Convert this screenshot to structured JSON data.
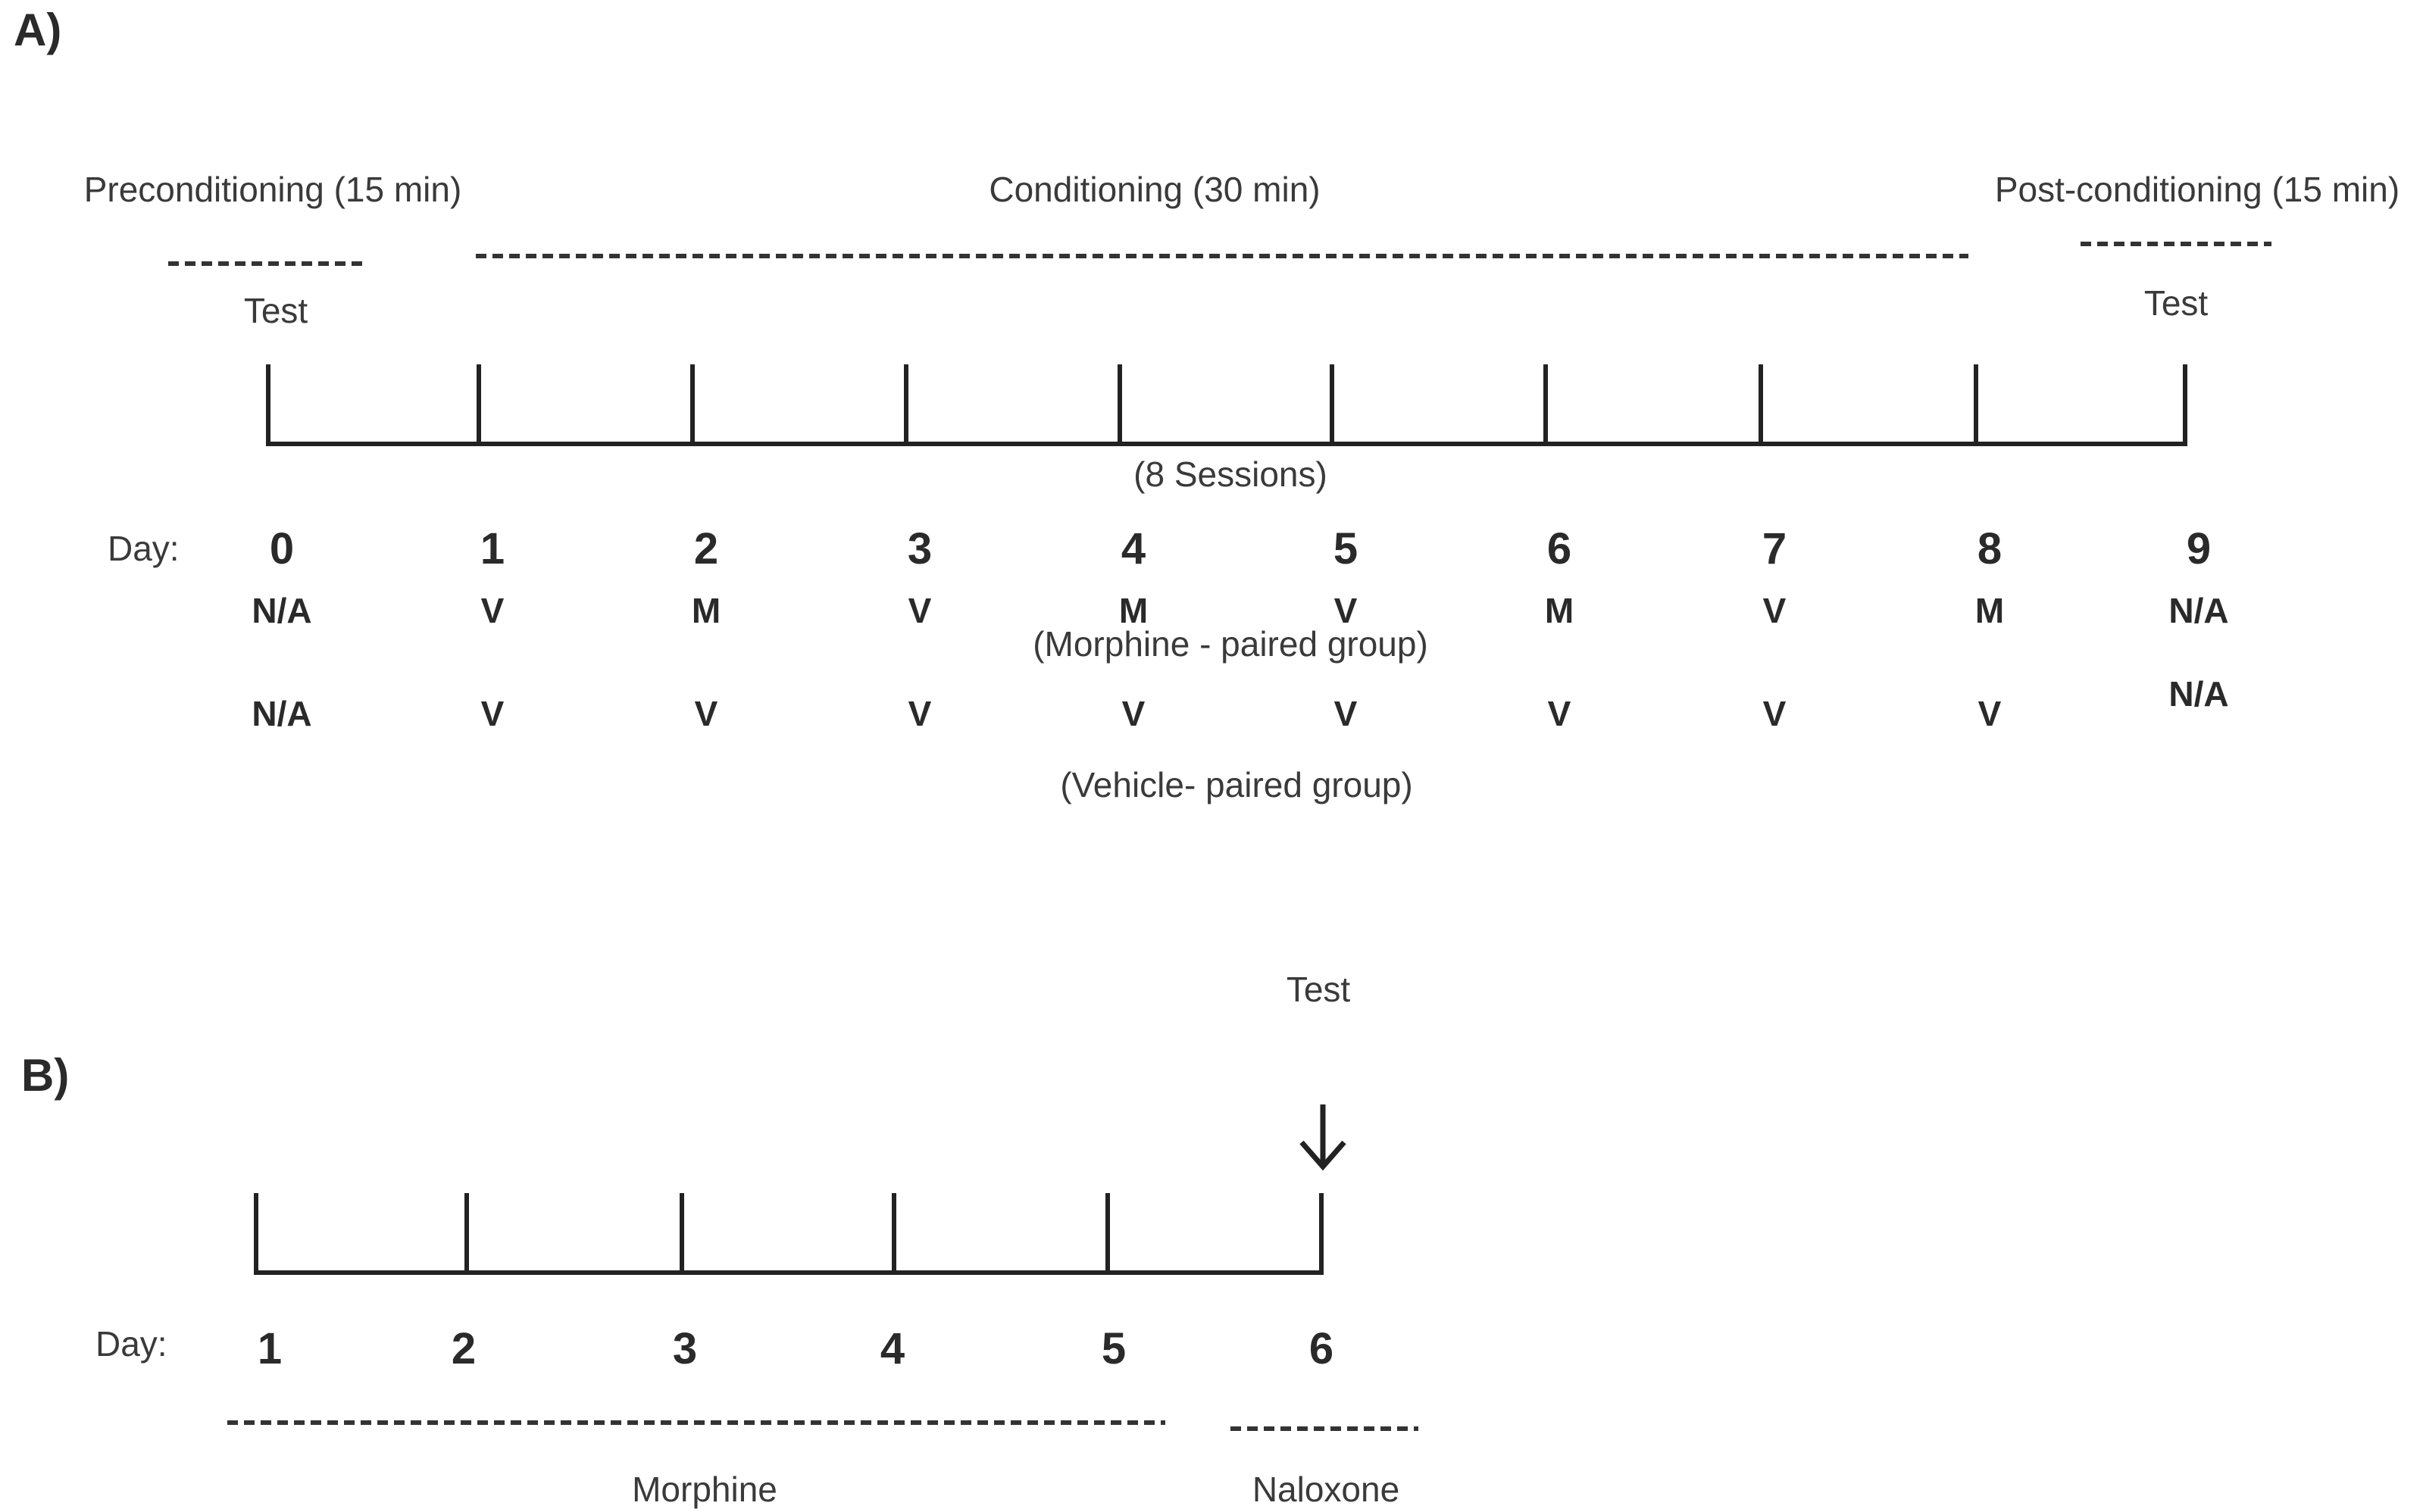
{
  "panel_a": {
    "label": "A)",
    "phases": {
      "preconditioning": "Preconditioning (15 min)",
      "conditioning": "Conditioning (30 min)",
      "postconditioning": "Post-conditioning (15 min)"
    },
    "test_left": "Test",
    "test_right": "Test",
    "sessions": "(8 Sessions)",
    "day_label": "Day:",
    "days": [
      "0",
      "1",
      "2",
      "3",
      "4",
      "5",
      "6",
      "7",
      "8",
      "9"
    ],
    "morphine_row": [
      "N/A",
      "V",
      "M",
      "V",
      "M",
      "V",
      "M",
      "V",
      "M",
      "N/A"
    ],
    "morphine_group": "(Morphine - paired group)",
    "vehicle_row": [
      "N/A",
      "V",
      "V",
      "V",
      "V",
      "V",
      "V",
      "V",
      "V",
      "N/A"
    ],
    "vehicle_group": "(Vehicle- paired group)"
  },
  "panel_b": {
    "label": "B)",
    "test": "Test",
    "day_label": "Day:",
    "days": [
      "1",
      "2",
      "3",
      "4",
      "5",
      "6"
    ],
    "morphine": "Morphine",
    "naloxone": "Naloxone"
  }
}
